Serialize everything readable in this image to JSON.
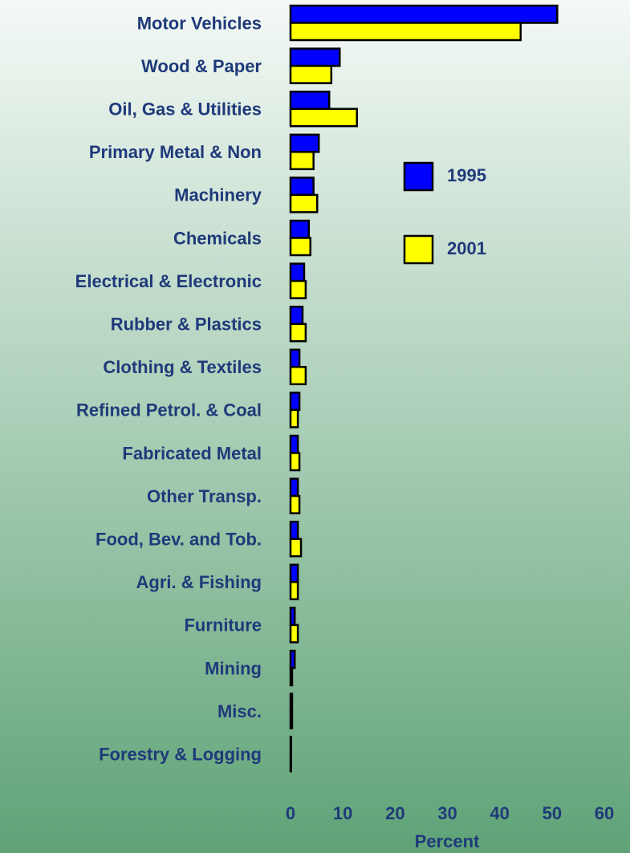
{
  "chart_data": {
    "type": "bar",
    "orientation": "horizontal",
    "categories": [
      "Motor Vehicles",
      "Wood & Paper",
      "Oil, Gas & Utilities",
      "Primary Metal & Non",
      "Machinery",
      "Chemicals",
      "Electrical &  Electronic",
      "Rubber & Plastics",
      "Clothing & Textiles",
      "Refined Petrol. & Coal",
      "Fabricated Metal",
      "Other Transp.",
      "Food, Bev. and Tob.",
      "Agri. & Fishing",
      "Furniture",
      "Mining",
      "Misc.",
      "Forestry & Logging"
    ],
    "series": [
      {
        "name": "1995",
        "color": "#0000ff",
        "values": [
          51,
          9.4,
          7.4,
          5.4,
          4.4,
          3.5,
          2.6,
          2.3,
          1.7,
          1.7,
          1.4,
          1.4,
          1.4,
          1.4,
          0.8,
          0.8,
          0.3,
          0.1
        ]
      },
      {
        "name": "2001",
        "color": "#ffff00",
        "values": [
          44,
          7.8,
          12.7,
          4.4,
          5.1,
          3.8,
          2.9,
          2.9,
          2.9,
          1.4,
          1.7,
          1.7,
          2.0,
          1.4,
          1.4,
          0.3,
          0.3,
          0.1
        ]
      }
    ],
    "xlabel": "Percent",
    "xlim": [
      0,
      60
    ],
    "xticks": [
      0,
      10,
      20,
      30,
      40,
      50,
      60
    ]
  }
}
